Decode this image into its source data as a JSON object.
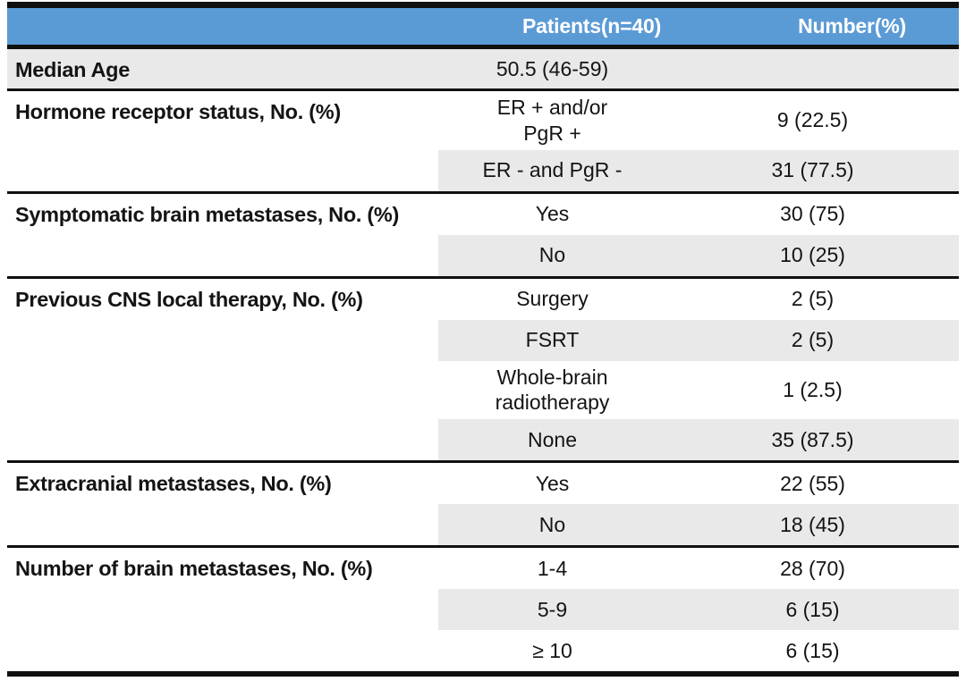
{
  "table": {
    "header": {
      "patients": "Patients(n=40)",
      "number": "Number(%)"
    },
    "colors": {
      "header_bg": "#5B9BD5",
      "header_text": "#FFFFFF",
      "stripe_bg": "#E9E9E9",
      "border": "#101010"
    },
    "sections": [
      {
        "label": "Median Age",
        "full_stripe": true,
        "rows": [
          {
            "category": "50.5 (46-59)",
            "value": "",
            "shaded": false
          }
        ]
      },
      {
        "label": "Hormone receptor status, No. (%)",
        "full_stripe": false,
        "rows": [
          {
            "category": "ER + and/or\nPgR +",
            "value": "9 (22.5)",
            "shaded": false
          },
          {
            "category": "ER - and PgR -",
            "value": "31 (77.5)",
            "shaded": true
          }
        ]
      },
      {
        "label": "Symptomatic brain metastases, No. (%)",
        "full_stripe": false,
        "rows": [
          {
            "category": "Yes",
            "value": "30 (75)",
            "shaded": false
          },
          {
            "category": "No",
            "value": "10 (25)",
            "shaded": true
          }
        ]
      },
      {
        "label": "Previous CNS local therapy, No. (%)",
        "full_stripe": false,
        "rows": [
          {
            "category": "Surgery",
            "value": "2 (5)",
            "shaded": false
          },
          {
            "category": "FSRT",
            "value": "2 (5)",
            "shaded": true
          },
          {
            "category": "Whole-brain\nradiotherapy",
            "value": "1 (2.5)",
            "shaded": false
          },
          {
            "category": "None",
            "value": "35 (87.5)",
            "shaded": true
          }
        ]
      },
      {
        "label": "Extracranial metastases, No. (%)",
        "full_stripe": false,
        "rows": [
          {
            "category": "Yes",
            "value": "22 (55)",
            "shaded": false
          },
          {
            "category": "No",
            "value": "18 (45)",
            "shaded": true
          }
        ]
      },
      {
        "label": "Number of brain metastases, No. (%)",
        "full_stripe": false,
        "rows": [
          {
            "category": "1-4",
            "value": "28 (70)",
            "shaded": false
          },
          {
            "category": "5-9",
            "value": "6 (15)",
            "shaded": true
          },
          {
            "category": "≥ 10",
            "value": "6 (15)",
            "shaded": false
          }
        ]
      }
    ]
  }
}
